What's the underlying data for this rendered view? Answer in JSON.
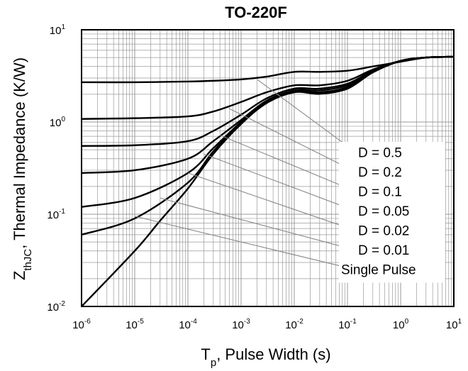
{
  "chart_data": {
    "type": "line",
    "title": "TO-220F",
    "xlabel": {
      "main": "T",
      "sub": "p",
      "rest": ", Pulse Width (s)"
    },
    "ylabel": {
      "main": "Z",
      "sub": "thJC",
      "rest": ", Thermal Impedance (K/W)"
    },
    "x_scale": "log",
    "y_scale": "log",
    "xlim": [
      1e-06,
      10
    ],
    "ylim": [
      0.01,
      10
    ],
    "x_ticks": [
      {
        "base": "10",
        "exp": "-6",
        "value": 1e-06
      },
      {
        "base": "10",
        "exp": "-5",
        "value": 1e-05
      },
      {
        "base": "10",
        "exp": "-4",
        "value": 0.0001
      },
      {
        "base": "10",
        "exp": "-3",
        "value": 0.001
      },
      {
        "base": "10",
        "exp": "-2",
        "value": 0.01
      },
      {
        "base": "10",
        "exp": "-1",
        "value": 0.1
      },
      {
        "base": "10",
        "exp": "0",
        "value": 1
      },
      {
        "base": "10",
        "exp": "1",
        "value": 10
      }
    ],
    "y_ticks": [
      {
        "base": "10",
        "exp": "-2",
        "value": 0.01
      },
      {
        "base": "10",
        "exp": "-1",
        "value": 0.1
      },
      {
        "base": "10",
        "exp": "0",
        "value": 1
      },
      {
        "base": "10",
        "exp": "1",
        "value": 10
      }
    ],
    "grid": true,
    "line_color": "#000000",
    "grid_color": "#9a9a9a",
    "series": [
      {
        "name": "D = 0.5",
        "x": [
          1e-06,
          1e-05,
          0.0001,
          0.0003,
          0.001,
          0.003,
          0.01,
          0.03,
          0.1,
          0.3,
          1,
          3,
          10
        ],
        "y": [
          2.7,
          2.7,
          2.75,
          2.8,
          2.9,
          3.1,
          3.5,
          3.5,
          3.6,
          4.0,
          4.5,
          5.0,
          5.1
        ]
      },
      {
        "name": "D = 0.2",
        "x": [
          1e-06,
          1e-05,
          0.0001,
          0.0003,
          0.001,
          0.003,
          0.01,
          0.03,
          0.1,
          0.3,
          1,
          3,
          10
        ],
        "y": [
          1.08,
          1.1,
          1.15,
          1.3,
          1.65,
          2.1,
          2.5,
          2.5,
          2.8,
          3.7,
          4.6,
          5.0,
          5.1
        ]
      },
      {
        "name": "D = 0.1",
        "x": [
          1e-06,
          1e-05,
          0.0001,
          0.0003,
          0.001,
          0.003,
          0.01,
          0.03,
          0.1,
          0.3,
          1,
          3,
          10
        ],
        "y": [
          0.55,
          0.56,
          0.62,
          0.8,
          1.2,
          1.8,
          2.3,
          2.3,
          2.6,
          3.6,
          4.6,
          5.0,
          5.1
        ]
      },
      {
        "name": "D = 0.05",
        "x": [
          1e-06,
          1e-05,
          0.0001,
          0.0003,
          0.001,
          0.003,
          0.01,
          0.03,
          0.1,
          0.3,
          1,
          3,
          10
        ],
        "y": [
          0.28,
          0.3,
          0.4,
          0.62,
          1.05,
          1.7,
          2.2,
          2.2,
          2.5,
          3.5,
          4.6,
          5.0,
          5.1
        ]
      },
      {
        "name": "D = 0.02",
        "x": [
          1e-06,
          1e-05,
          0.0001,
          0.0003,
          0.001,
          0.003,
          0.01,
          0.03,
          0.1,
          0.3,
          1,
          3,
          10
        ],
        "y": [
          0.12,
          0.15,
          0.28,
          0.52,
          1.0,
          1.65,
          2.15,
          2.1,
          2.4,
          3.5,
          4.6,
          5.0,
          5.1
        ]
      },
      {
        "name": "D = 0.01",
        "x": [
          1e-06,
          1e-05,
          0.0001,
          0.0003,
          0.001,
          0.003,
          0.01,
          0.03,
          0.1,
          0.3,
          1,
          3,
          10
        ],
        "y": [
          0.06,
          0.09,
          0.22,
          0.48,
          0.98,
          1.62,
          2.12,
          2.05,
          2.35,
          3.5,
          4.6,
          5.0,
          5.1
        ]
      },
      {
        "name": "Single Pulse",
        "x": [
          1e-06,
          1e-05,
          3e-05,
          0.0001,
          0.0003,
          0.001,
          0.003,
          0.01,
          0.03,
          0.1,
          0.3,
          1,
          3,
          10
        ],
        "y": [
          0.01,
          0.04,
          0.085,
          0.19,
          0.45,
          0.95,
          1.6,
          2.1,
          2.02,
          2.3,
          3.45,
          4.6,
          5.0,
          5.1
        ]
      }
    ],
    "legend": {
      "position": "right",
      "entries": [
        "D = 0.5",
        "D = 0.2",
        "D = 0.1",
        "D = 0.05",
        "D = 0.02",
        "D = 0.01",
        "Single Pulse"
      ],
      "pointer_targets": [
        {
          "x": 0.002,
          "y": 2.9
        },
        {
          "x": 0.0006,
          "y": 1.4
        },
        {
          "x": 0.0004,
          "y": 0.72
        },
        {
          "x": 0.0002,
          "y": 0.45
        },
        {
          "x": 0.0001,
          "y": 0.28
        },
        {
          "x": 3e-05,
          "y": 0.15
        },
        {
          "x": 1e-05,
          "y": 0.095
        }
      ]
    }
  }
}
